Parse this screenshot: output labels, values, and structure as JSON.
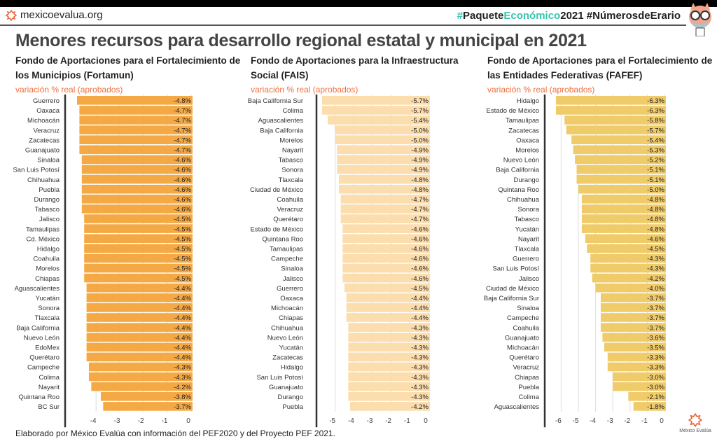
{
  "header": {
    "site": "mexicoevalua.org",
    "hashtag_parts": [
      "#",
      "Paquete",
      "Económico",
      "2021",
      " #NúmerosdeErario"
    ],
    "accent": "#35c6b0"
  },
  "title": "Menores recursos para desarrollo regional estatal y municipal en 2021",
  "footer": "Elaborado por México Evalúa con información  del PEF2020 y del Proyecto PEF 2021.",
  "logo_text": "México Evalúa",
  "chart_data": [
    {
      "type": "bar",
      "orientation": "horizontal",
      "title": "Fondo de Aportaciones para el Fortalecimiento de los Municipios (Fortamun)",
      "subtitle": "variación % real (aprobados)",
      "color": "#F5A945",
      "xlim": [
        -4.8,
        0
      ],
      "ticks": [
        -4,
        -3,
        -2,
        -1,
        0
      ],
      "grid": true,
      "categories": [
        "Guerrero",
        "Oaxaca",
        "Michoacán",
        "Veracruz",
        "Zacatecas",
        "Guanajuato",
        "Sinaloa",
        "San Luis Potosí",
        "Chihuahua",
        "Puebla",
        "Durango",
        "Tabasco",
        "Jalisco",
        "Tamaulipas",
        "Cd. México",
        "Hidalgo",
        "Coahuila",
        "Morelos",
        "Chiapas",
        "Aguascalientes",
        "Yucatán",
        "Sonora",
        "Tlaxcala",
        "Baja California",
        "Nuevo León",
        "EdoMex",
        "Querétaro",
        "Campeche",
        "Colima",
        "Nayarit",
        "Quintana Roo",
        "BC Sur"
      ],
      "values": [
        -4.8,
        -4.7,
        -4.7,
        -4.7,
        -4.7,
        -4.7,
        -4.6,
        -4.6,
        -4.6,
        -4.6,
        -4.6,
        -4.6,
        -4.5,
        -4.5,
        -4.5,
        -4.5,
        -4.5,
        -4.5,
        -4.5,
        -4.4,
        -4.4,
        -4.4,
        -4.4,
        -4.4,
        -4.4,
        -4.4,
        -4.4,
        -4.3,
        -4.3,
        -4.2,
        -3.8,
        -3.7
      ],
      "labels": [
        "-4.8%",
        "-4.7%",
        "-4.7%",
        "-4.7%",
        "-4.7%",
        "-4.7%",
        "-4.6%",
        "-4.6%",
        "-4.6%",
        "-4.6%",
        "-4.6%",
        "-4.6%",
        "-4.5%",
        "-4.5%",
        "-4.5%",
        "-4.5%",
        "-4.5%",
        "-4.5%",
        "-4.5%",
        "-4.4%",
        "-4.4%",
        "-4.4%",
        "-4.4%",
        "-4.4%",
        "-4.4%",
        "-4.4%",
        "-4.4%",
        "-4.3%",
        "-4.3%",
        "-4.2%",
        "-3.8%",
        "-3.7%"
      ]
    },
    {
      "type": "bar",
      "orientation": "horizontal",
      "title": "Fondo de Aportaciones para la Infraestructura Social (FAIS)",
      "subtitle": "variación % real (aprobados)",
      "color": "#FBDDAE",
      "xlim": [
        -5.7,
        0
      ],
      "ticks": [
        -5,
        -4,
        -3,
        -2,
        -1,
        0
      ],
      "grid": true,
      "categories": [
        "Baja California Sur",
        "Colima",
        "Aguascalientes",
        "Baja California",
        "Morelos",
        "Nayarit",
        "Tabasco",
        "Sonora",
        "Tlaxcala",
        "Ciudad de México",
        "Coahuila",
        "Veracruz",
        "Querétaro",
        "Estado de México",
        "Quintana Roo",
        "Tamaulipas",
        "Campeche",
        "Sinaloa",
        "Jalisco",
        "Guerrero",
        "Oaxaca",
        "Michoacán",
        "Chiapas",
        "Chihuahua",
        "Nuevo León",
        "Yucatán",
        "Zacatecas",
        "Hidalgo",
        "San Luis Potosí",
        "Guanajuato",
        "Durango",
        "Puebla"
      ],
      "values": [
        -5.7,
        -5.7,
        -5.4,
        -5.0,
        -5.0,
        -4.9,
        -4.9,
        -4.9,
        -4.8,
        -4.8,
        -4.7,
        -4.7,
        -4.7,
        -4.6,
        -4.6,
        -4.6,
        -4.6,
        -4.6,
        -4.6,
        -4.5,
        -4.4,
        -4.4,
        -4.4,
        -4.3,
        -4.3,
        -4.3,
        -4.3,
        -4.3,
        -4.3,
        -4.3,
        -4.3,
        -4.2
      ],
      "labels": [
        "-5.7%",
        "-5.7%",
        "-5.4%",
        "-5.0%",
        "-5.0%",
        "-4.9%",
        "-4.9%",
        "-4.9%",
        "-4.8%",
        "-4.8%",
        "-4.7%",
        "-4.7%",
        "-4.7%",
        "-4.6%",
        "-4.6%",
        "-4.6%",
        "-4.6%",
        "-4.6%",
        "-4.6%",
        "-4.5%",
        "-4.4%",
        "-4.4%",
        "-4.4%",
        "-4.3%",
        "-4.3%",
        "-4.3%",
        "-4.3%",
        "-4.3%",
        "-4.3%",
        "-4.3%",
        "-4.3%",
        "-4.2%"
      ]
    },
    {
      "type": "bar",
      "orientation": "horizontal",
      "title": "Fondo de Aportaciones para el Fortalecimiento de las Entidades Federativas (FAFEF)",
      "subtitle": "variación % real (aprobados)",
      "color": "#F0CB6A",
      "xlim": [
        -6.3,
        0
      ],
      "ticks": [
        -6,
        -5,
        -4,
        -3,
        -2,
        -1,
        0
      ],
      "grid": true,
      "categories": [
        "Hidalgo",
        "Estado de México",
        "Tamaulipas",
        "Zacatecas",
        "Oaxaca",
        "Morelos",
        "Nuevo León",
        "Baja California",
        "Durango",
        "Quintana Roo",
        "Chihuahua",
        "Sonora",
        "Tabasco",
        "Yucatán",
        "Nayarit",
        "Tlaxcala",
        "Guerrero",
        "San Luis Potosí",
        "Jalisco",
        "Ciudad de México",
        "Baja California Sur",
        "Sinaloa",
        "Campeche",
        "Coahuila",
        "Guanajuato",
        "Michoacán",
        "Querétaro",
        "Veracruz",
        "Chiapas",
        "Puebla",
        "Colima",
        "Aguascalientes"
      ],
      "values": [
        -6.3,
        -6.3,
        -5.8,
        -5.7,
        -5.4,
        -5.3,
        -5.2,
        -5.1,
        -5.1,
        -5.0,
        -4.8,
        -4.8,
        -4.8,
        -4.8,
        -4.6,
        -4.5,
        -4.3,
        -4.3,
        -4.2,
        -4.0,
        -3.7,
        -3.7,
        -3.7,
        -3.7,
        -3.6,
        -3.5,
        -3.3,
        -3.3,
        -3.0,
        -3.0,
        -2.1,
        -1.8
      ],
      "labels": [
        "-6.3%",
        "-6.3%",
        "-5.8%",
        "-5.7%",
        "-5.4%",
        "-5.3%",
        "-5.2%",
        "-5.1%",
        "-5.1%",
        "-5.0%",
        "-4.8%",
        "-4.8%",
        "-4.8%",
        "-4.8%",
        "-4.6%",
        "-4.5%",
        "-4.3%",
        "-4.3%",
        "-4.2%",
        "-4.0%",
        "-3.7%",
        "-3.7%",
        "-3.7%",
        "-3.7%",
        "-3.6%",
        "-3.5%",
        "-3.3%",
        "-3.3%",
        "-3.0%",
        "-3.0%",
        "-2.1%",
        "-1.8%"
      ]
    }
  ]
}
